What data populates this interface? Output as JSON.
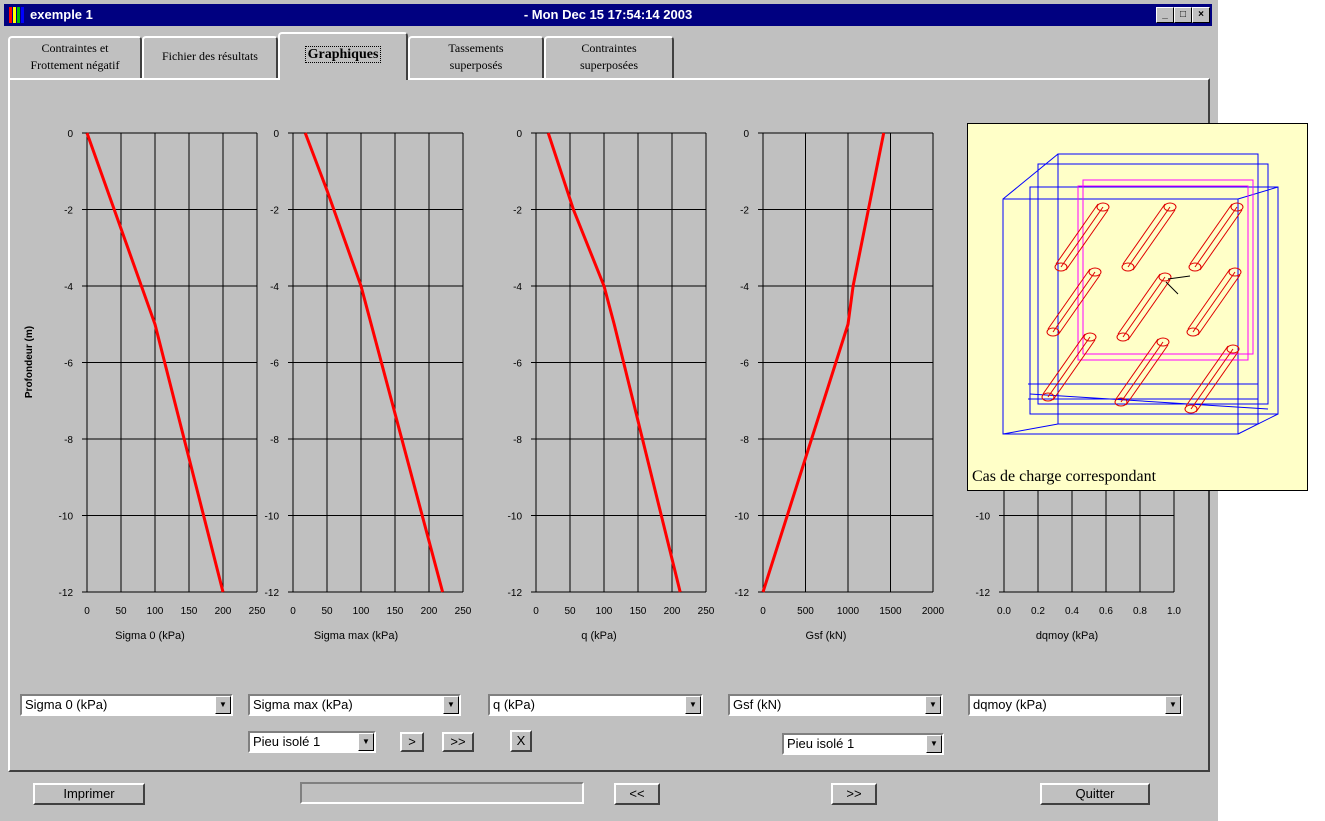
{
  "window": {
    "title": "exemple 1",
    "timestamp": "- Mon Dec 15 17:54:14 2003",
    "controls": [
      "_",
      "□",
      "×"
    ]
  },
  "tabs": [
    {
      "label_lines": [
        "Contraintes et",
        "Frottement négatif"
      ]
    },
    {
      "label_lines": [
        "Fichier des résultats"
      ]
    },
    {
      "label_lines": [
        "Graphiques"
      ],
      "active": true
    },
    {
      "label_lines": [
        "Tassements",
        "superposés"
      ]
    },
    {
      "label_lines": [
        "Contraintes",
        "superposées"
      ]
    }
  ],
  "y_axis_label": "Profondeur (m)",
  "chart_data": [
    {
      "type": "line",
      "xlabel": "Sigma 0 (kPa)",
      "xticks": [
        "0",
        "50",
        "100",
        "150",
        "200",
        "250"
      ],
      "xlim": [
        0,
        250
      ],
      "yticks": [
        "0",
        "-2",
        "-4",
        "-6",
        "-8",
        "-10",
        "-12"
      ],
      "ylim": [
        -12,
        0
      ],
      "grid": true,
      "series": [
        {
          "x": [
            0,
            50,
            100,
            200
          ],
          "y": [
            0,
            -2.5,
            -5,
            -12
          ]
        }
      ]
    },
    {
      "type": "line",
      "xlabel": "Sigma max (kPa)",
      "xticks": [
        "0",
        "50",
        "100",
        "150",
        "200",
        "250"
      ],
      "xlim": [
        0,
        250
      ],
      "yticks": [
        "0",
        "-2",
        "-4",
        "-6",
        "-8",
        "-10",
        "-12"
      ],
      "ylim": [
        -12,
        0
      ],
      "grid": true,
      "series": [
        {
          "x": [
            18,
            50,
            100,
            115,
            220
          ],
          "y": [
            0,
            -1.5,
            -4,
            -5,
            -12
          ]
        }
      ]
    },
    {
      "type": "line",
      "xlabel": "q (kPa)",
      "xticks": [
        "0",
        "50",
        "100",
        "150",
        "200",
        "250"
      ],
      "xlim": [
        0,
        250
      ],
      "yticks": [
        "0",
        "-2",
        "-4",
        "-6",
        "-8",
        "-10",
        "-12"
      ],
      "ylim": [
        -12,
        0
      ],
      "grid": true,
      "series": [
        {
          "x": [
            18,
            55,
            100,
            115,
            212
          ],
          "y": [
            0,
            -2,
            -4,
            -5,
            -12
          ]
        }
      ]
    },
    {
      "type": "line",
      "xlabel": "Gsf (kN)",
      "xticks": [
        "0",
        "500",
        "1000",
        "1500",
        "2000"
      ],
      "xlim": [
        0,
        2000
      ],
      "yticks": [
        "0",
        "-2",
        "-4",
        "-6",
        "-8",
        "-10",
        "-12"
      ],
      "ylim": [
        -12,
        0
      ],
      "grid": true,
      "series": [
        {
          "x": [
            1420,
            1240,
            1060,
            1000,
            0
          ],
          "y": [
            0,
            -2,
            -4,
            -5,
            -12
          ]
        }
      ]
    },
    {
      "type": "line",
      "xlabel": "dqmoy (kPa)",
      "xticks": [
        "0.0",
        "0.2",
        "0.4",
        "0.6",
        "0.8",
        "1.0"
      ],
      "xlim": [
        0,
        1
      ],
      "yticks": [
        "0",
        "-2",
        "-4",
        "-6",
        "-8",
        "-10",
        "-12"
      ],
      "ylim": [
        -12,
        0
      ],
      "grid": true,
      "series": []
    }
  ],
  "selects": [
    {
      "value": "Sigma 0 (kPa)"
    },
    {
      "value": "Sigma max (kPa)"
    },
    {
      "value": "q (kPa)"
    },
    {
      "value": "Gsf (kN)"
    },
    {
      "value": "dqmoy (kPa)"
    }
  ],
  "pile_select_1": "Pieu isolé  1",
  "pile_select_2": "Pieu isolé  1",
  "nav": {
    "next": ">",
    "last": ">>",
    "close": "X"
  },
  "bottom": {
    "print": "Imprimer",
    "prev": "<<",
    "next": ">>",
    "quit": "Quitter"
  },
  "popup": {
    "caption": "Cas de charge correspondant"
  },
  "colors": {
    "line": "#ff0000",
    "titlebar": "#000080",
    "popup_bg": "#ffffc8"
  }
}
